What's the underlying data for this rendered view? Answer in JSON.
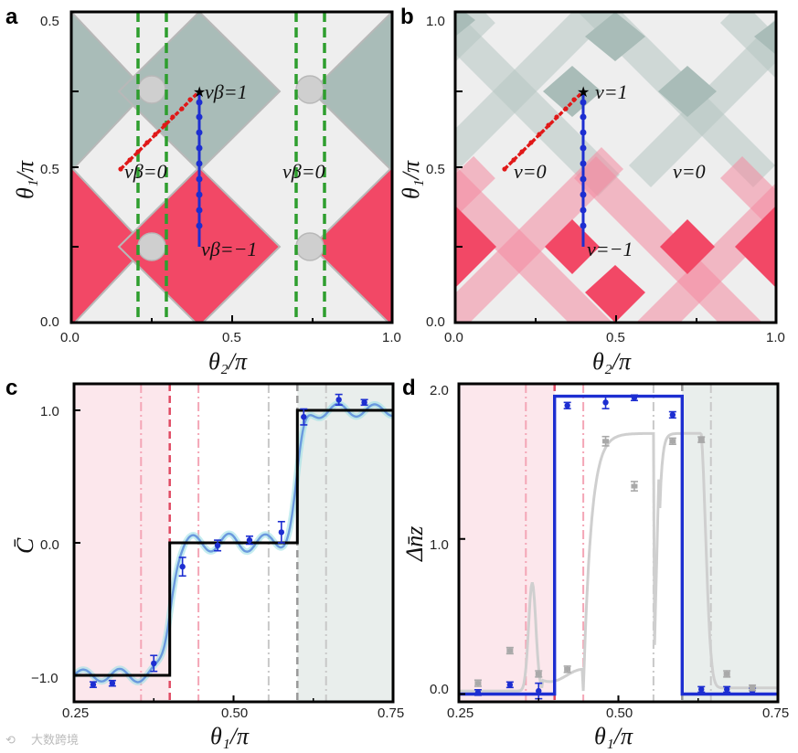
{
  "panel_labels": [
    "a",
    "b",
    "c",
    "d"
  ],
  "watermark": "大数跨境",
  "colors": {
    "red": "#f24866",
    "teal": "#a8bdb9",
    "light": "#eeeeee",
    "pink_bg": "#fce7ec",
    "teal_bg": "#e9eeec",
    "blue": "#1d2ed1",
    "black": "#000000",
    "gray": "#c7c7c7",
    "green": "#2e9e2e",
    "cyan": "#9fe1e6"
  },
  "panel_a": {
    "xlabel": "θ₂/π",
    "ylabel": "θ₁/π",
    "xticks": [
      "0.0",
      "0.5",
      "1.0"
    ],
    "yticks": [
      "0.0",
      "0.5"
    ],
    "ytick_top": "0.5",
    "annotations": {
      "top": "vβ=1",
      "left": "vβ=0",
      "right": "vβ=0",
      "bottom": "vβ=−1"
    }
  },
  "panel_b": {
    "xlabel": "θ₂/π",
    "ylabel": "θ₁/π",
    "xticks": [
      "0.0",
      "0.5",
      "1.0"
    ],
    "yticks": [
      "0.0",
      "0.5",
      "1.0"
    ],
    "annotations": {
      "top": "v=1",
      "left": "v=0",
      "right": "v=0",
      "bottom": "v=−1"
    }
  },
  "chart_data": [
    {
      "type": "scatter",
      "panel": "c",
      "xlabel": "θ₁/π",
      "ylabel": "C̄",
      "xlim": [
        0.25,
        0.75
      ],
      "ylim": [
        -1.2,
        1.2
      ],
      "xticks": [
        "0.25",
        "0.50",
        "0.75"
      ],
      "yticks": [
        "−1.0",
        "0.0",
        "1.0"
      ],
      "series": [
        {
          "kind": "step",
          "x": [
            0.25,
            0.4,
            0.4,
            0.6,
            0.6,
            0.75
          ],
          "y": [
            -1.0,
            -1.0,
            0.0,
            0.0,
            1.0,
            1.0
          ]
        },
        {
          "kind": "points",
          "x": [
            0.28,
            0.31,
            0.375,
            0.42,
            0.475,
            0.525,
            0.575,
            0.61,
            0.665,
            0.705
          ],
          "y": [
            -1.07,
            -1.06,
            -0.91,
            -0.18,
            -0.02,
            0.02,
            0.08,
            0.95,
            1.08,
            1.06
          ],
          "err": [
            0.01,
            0.02,
            0.06,
            0.07,
            0.04,
            0.03,
            0.08,
            0.06,
            0.04,
            0.02
          ]
        }
      ]
    },
    {
      "type": "scatter",
      "panel": "d",
      "xlabel": "θ₁/π",
      "ylabel": "Δn̄z",
      "xlim": [
        0.25,
        0.75
      ],
      "ylim": [
        -0.05,
        2.0
      ],
      "xticks": [
        "0.25",
        "0.50",
        "0.75"
      ],
      "yticks": [
        "0.0",
        "1.0",
        "2.0"
      ],
      "series": [
        {
          "kind": "step",
          "x": [
            0.25,
            0.4,
            0.4,
            0.6,
            0.6,
            0.75
          ],
          "y": [
            0.0,
            0.0,
            1.92,
            1.92,
            0.0,
            0.0
          ]
        },
        {
          "kind": "points",
          "x": [
            0.28,
            0.33,
            0.375,
            0.42,
            0.48,
            0.525,
            0.585,
            0.63,
            0.67,
            0.71
          ],
          "y": [
            0.01,
            0.06,
            0.02,
            1.86,
            1.88,
            1.91,
            1.8,
            0.03,
            0.03,
            0.02
          ],
          "err": [
            0.01,
            0.01,
            0.05,
            0.02,
            0.04,
            0.01,
            0.02,
            0.01,
            0.01,
            0.01
          ]
        },
        {
          "kind": "points",
          "x": [
            0.28,
            0.33,
            0.375,
            0.42,
            0.48,
            0.525,
            0.585,
            0.63,
            0.67,
            0.71
          ],
          "y": [
            0.07,
            0.28,
            0.13,
            0.16,
            1.63,
            1.34,
            1.63,
            1.64,
            0.13,
            0.04
          ],
          "err": [
            0.02,
            0.02,
            0.02,
            0.02,
            0.03,
            0.03,
            0.02,
            0.01,
            0.02,
            0.01
          ]
        }
      ]
    }
  ]
}
